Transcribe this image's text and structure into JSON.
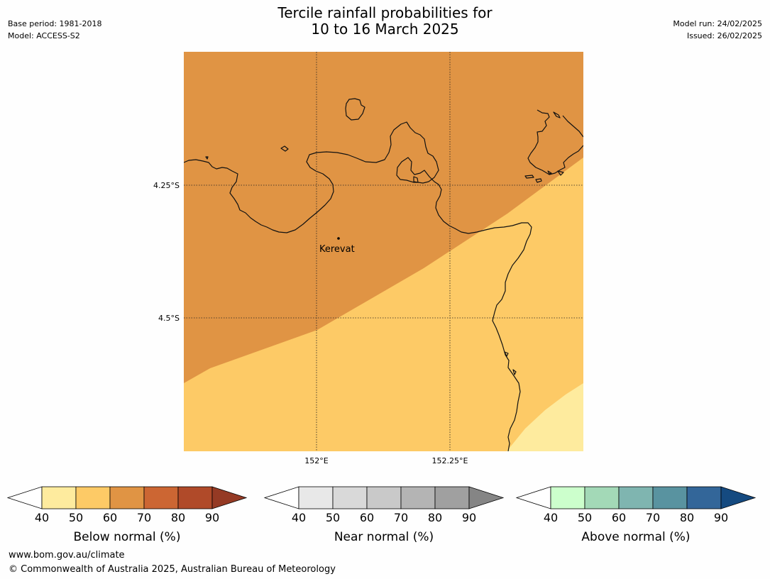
{
  "header": {
    "title_line1": "Tercile rainfall probabilities for",
    "title_line2": "10 to 16 March 2025",
    "base_period": "Base period: 1981-2018",
    "model": "Model: ACCESS-S2",
    "model_run": "Model run: 24/02/2025",
    "issued": "Issued: 26/02/2025"
  },
  "map": {
    "lat_labels": [
      "4.25°S",
      "4.5°S"
    ],
    "lon_labels": [
      "152°E",
      "152.25°E"
    ],
    "place": {
      "name": "Kerevat"
    },
    "zone_colors": {
      "below_60_70": "#e09444",
      "below_50_60": "#fdca66",
      "below_40_50": "#feeb9e"
    }
  },
  "colorbars": [
    {
      "id": "below",
      "label": "Below normal (%)",
      "ticks": [
        "40",
        "50",
        "60",
        "70",
        "80",
        "90"
      ],
      "colors": [
        "#feeb9e",
        "#fdca66",
        "#e09444",
        "#cc6633",
        "#b04a29"
      ],
      "extend_low": "#ffffff",
      "extend_high": "#953a24"
    },
    {
      "id": "near",
      "label": "Near normal (%)",
      "ticks": [
        "40",
        "50",
        "60",
        "70",
        "80",
        "90"
      ],
      "colors": [
        "#e8e8e8",
        "#d9d9d9",
        "#c9c9c9",
        "#b4b4b4",
        "#a0a0a0"
      ],
      "extend_low": "#ffffff",
      "extend_high": "#858585"
    },
    {
      "id": "above",
      "label": "Above normal (%)",
      "ticks": [
        "40",
        "50",
        "60",
        "70",
        "80",
        "90"
      ],
      "colors": [
        "#ccffcc",
        "#a3d9b7",
        "#7fb5b0",
        "#5993a0",
        "#336699"
      ],
      "extend_low": "#ffffff",
      "extend_high": "#154a80"
    }
  ],
  "footer": {
    "website": "www.bom.gov.au/climate",
    "copyright": "© Commonwealth of Australia 2025, Australian Bureau of Meteorology"
  }
}
